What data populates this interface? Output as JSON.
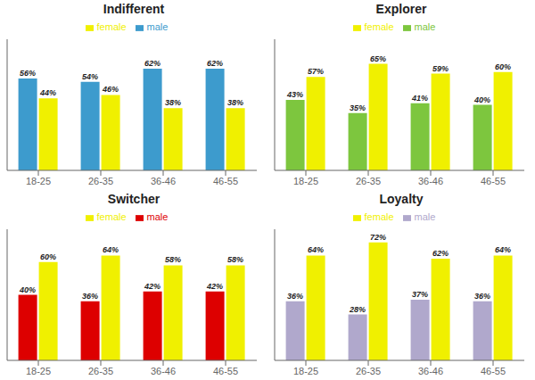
{
  "chart_data": [
    {
      "type": "bar",
      "title": "Indifferent",
      "categories": [
        "18-25",
        "26-35",
        "36-46",
        "46-55"
      ],
      "series": [
        {
          "name": "male",
          "color": "#3d9bcd",
          "values": [
            56,
            54,
            62,
            62
          ],
          "value_labels": [
            "56%",
            "54%",
            "62%",
            "62%"
          ]
        },
        {
          "name": "female",
          "color": "#f0f000",
          "values": [
            44,
            46,
            38,
            38
          ],
          "value_labels": [
            "44%",
            "46%",
            "38%",
            "38%"
          ]
        }
      ],
      "ylim": [
        0,
        80
      ],
      "grid": false,
      "legend": "top",
      "data_labels": true,
      "tick_labels": "x"
    },
    {
      "type": "bar",
      "title": "Explorer",
      "categories": [
        "18-25",
        "26-35",
        "36-46",
        "46-55"
      ],
      "series": [
        {
          "name": "male",
          "color": "#7dc63e",
          "values": [
            43,
            35,
            41,
            40
          ],
          "value_labels": [
            "43%",
            "35%",
            "41%",
            "40%"
          ]
        },
        {
          "name": "female",
          "color": "#f0f000",
          "values": [
            57,
            65,
            59,
            60
          ],
          "value_labels": [
            "57%",
            "65%",
            "59%",
            "60%"
          ]
        }
      ],
      "ylim": [
        0,
        80
      ],
      "grid": false,
      "legend": "top",
      "data_labels": true,
      "tick_labels": "x"
    },
    {
      "type": "bar",
      "title": "Switcher",
      "categories": [
        "18-25",
        "26-35",
        "36-46",
        "46-55"
      ],
      "series": [
        {
          "name": "male",
          "color": "#dd0000",
          "values": [
            40,
            36,
            42,
            42
          ],
          "value_labels": [
            "40%",
            "36%",
            "42%",
            "42%"
          ]
        },
        {
          "name": "female",
          "color": "#f0f000",
          "values": [
            60,
            64,
            58,
            58
          ],
          "value_labels": [
            "60%",
            "64%",
            "58%",
            "58%"
          ]
        }
      ],
      "ylim": [
        0,
        80
      ],
      "grid": false,
      "legend": "top",
      "data_labels": true,
      "tick_labels": "x"
    },
    {
      "type": "bar",
      "title": "Loyalty",
      "categories": [
        "18-25",
        "26-35",
        "36-46",
        "46-55"
      ],
      "series": [
        {
          "name": "male",
          "color": "#b0a8cc",
          "values": [
            36,
            28,
            37,
            36
          ],
          "value_labels": [
            "36%",
            "28%",
            "37%",
            "36%"
          ]
        },
        {
          "name": "female",
          "color": "#f0f000",
          "values": [
            64,
            72,
            62,
            64
          ],
          "value_labels": [
            "64%",
            "72%",
            "62%",
            "64%"
          ]
        }
      ],
      "ylim": [
        0,
        80
      ],
      "grid": false,
      "legend": "top",
      "data_labels": true,
      "tick_labels": "x"
    }
  ]
}
